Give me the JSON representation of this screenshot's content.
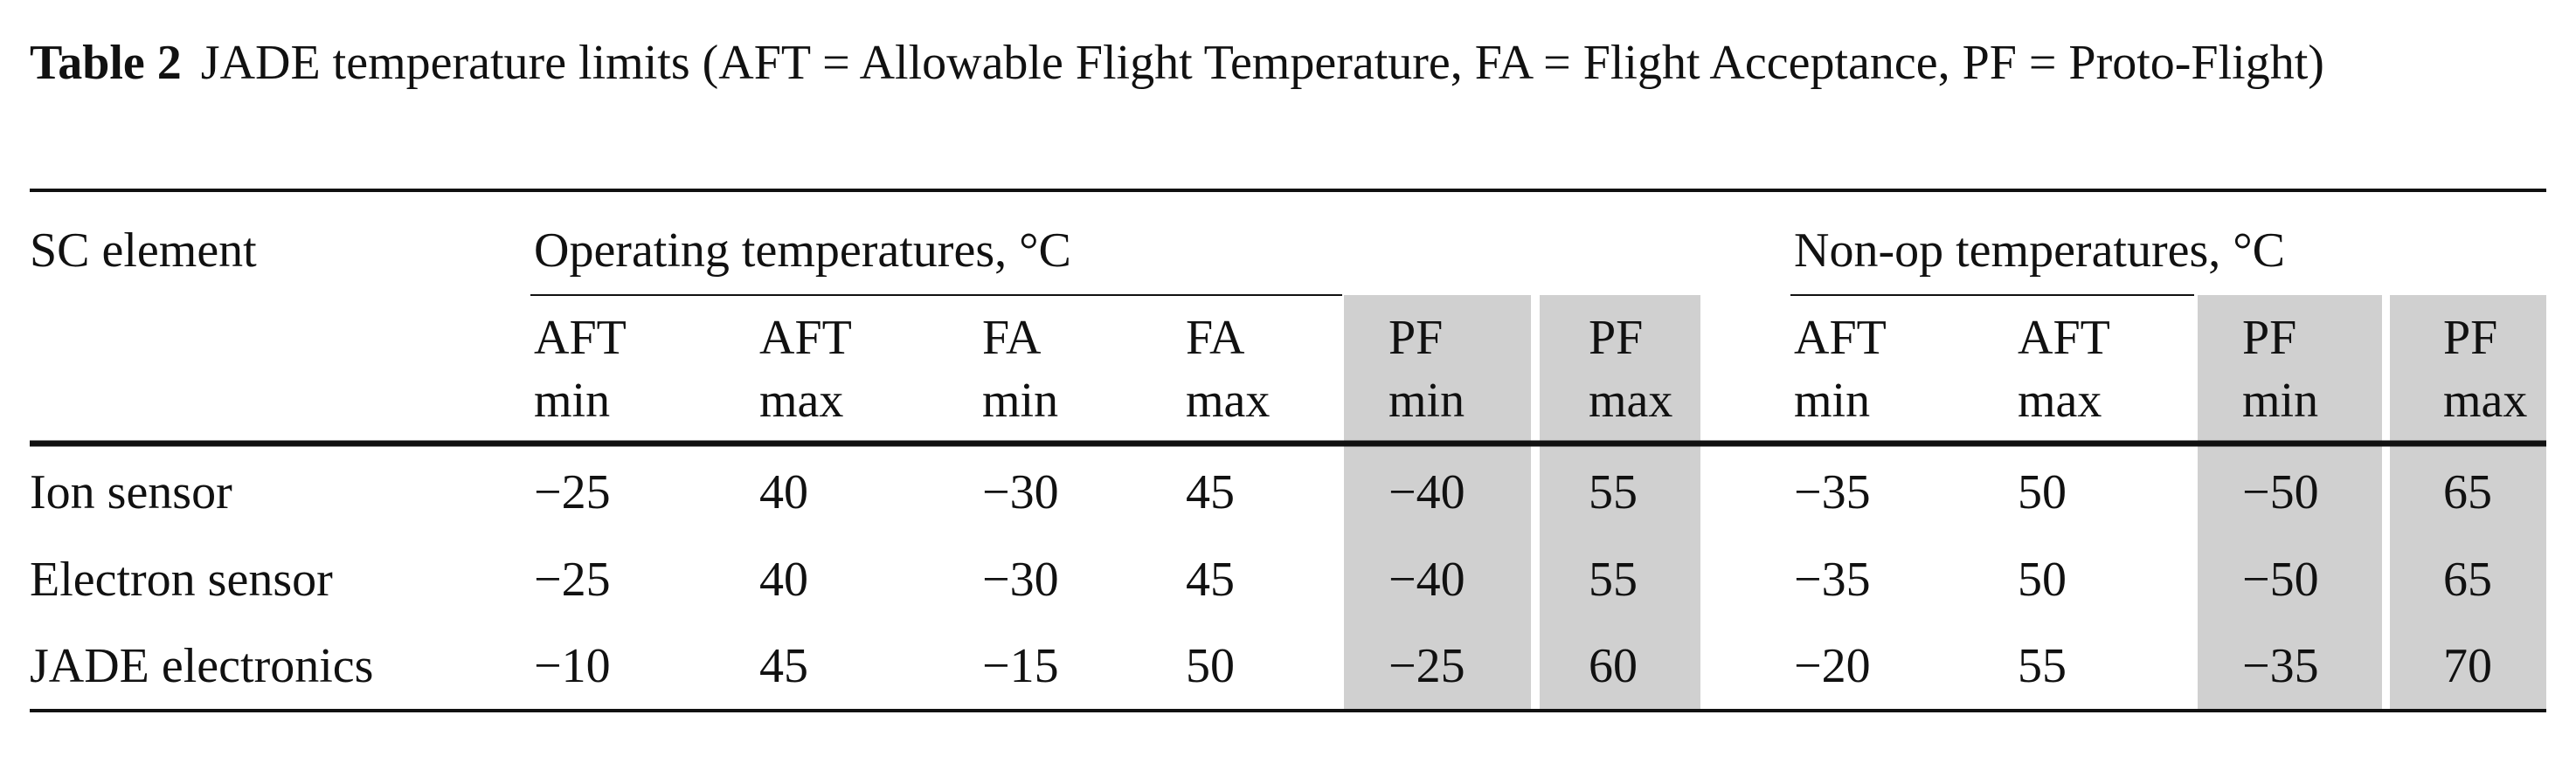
{
  "caption": {
    "label": "Table 2",
    "text": "JADE temperature limits (AFT = Allowable Flight Temperature, FA = Flight Acceptance, PF = Proto-Flight)"
  },
  "table": {
    "first_header": "SC element",
    "groups": [
      "Operating temperatures, °C",
      "Non-op temperatures, °C"
    ],
    "subheaders": [
      [
        "AFT",
        "min"
      ],
      [
        "AFT",
        "max"
      ],
      [
        "FA",
        "min"
      ],
      [
        "FA",
        "max"
      ],
      [
        "PF",
        "min"
      ],
      [
        "PF",
        "max"
      ],
      [
        "AFT",
        "min"
      ],
      [
        "AFT",
        "max"
      ],
      [
        "PF",
        "min"
      ],
      [
        "PF",
        "max"
      ]
    ],
    "rows": [
      [
        "Ion sensor",
        "−25",
        "40",
        "−30",
        "45",
        "−40",
        "55",
        "−35",
        "50",
        "−50",
        "65"
      ],
      [
        "Electron sensor",
        "−25",
        "40",
        "−30",
        "45",
        "−40",
        "55",
        "−35",
        "50",
        "−50",
        "65"
      ],
      [
        "JADE electronics",
        "−10",
        "45",
        "−15",
        "50",
        "−25",
        "60",
        "−20",
        "55",
        "−35",
        "70"
      ]
    ]
  }
}
